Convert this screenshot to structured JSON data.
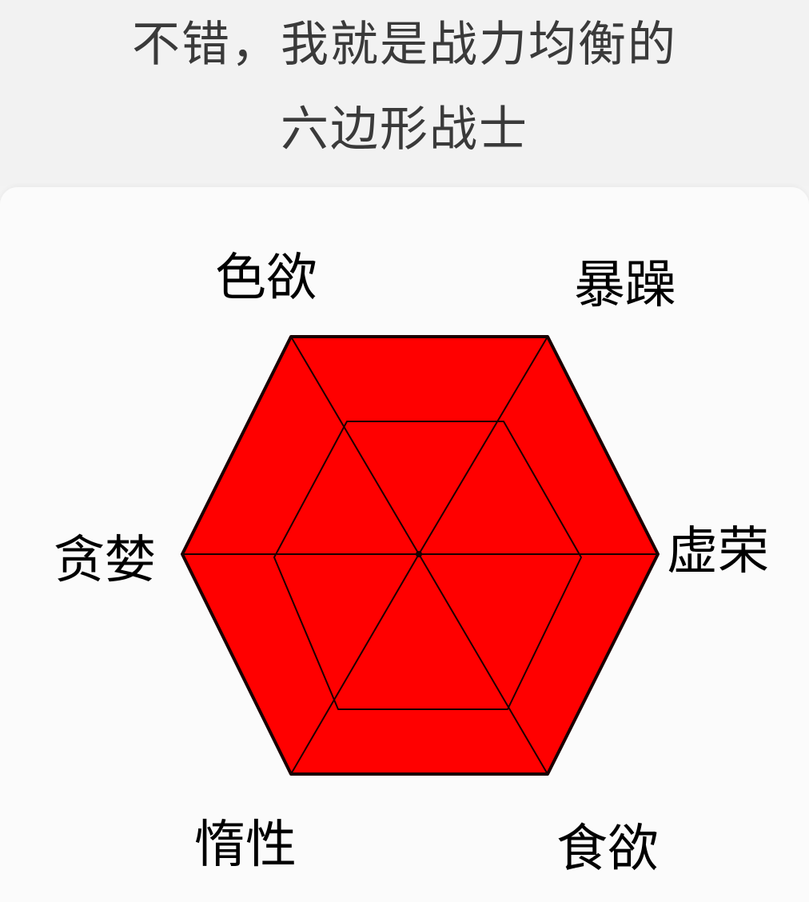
{
  "caption": {
    "line1": "不错，我就是战力均衡的",
    "line2": "六边形战士"
  },
  "radar": {
    "fill_color": "#ff0000",
    "line_color": "#1a0000",
    "axes": [
      {
        "key": "lust",
        "label": "色欲"
      },
      {
        "key": "anger",
        "label": "暴躁"
      },
      {
        "key": "vanity",
        "label": "虚荣"
      },
      {
        "key": "appetite",
        "label": "食欲"
      },
      {
        "key": "laziness",
        "label": "惰性"
      },
      {
        "key": "greed",
        "label": "贪婪"
      }
    ]
  }
}
